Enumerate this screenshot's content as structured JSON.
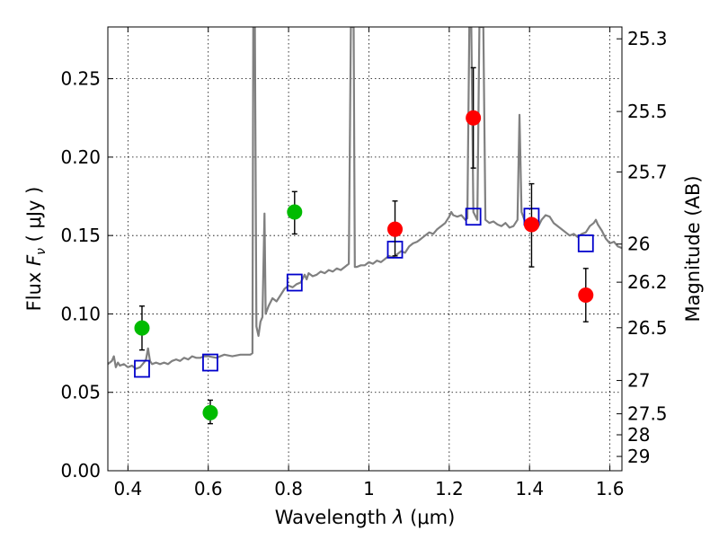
{
  "chart_data": {
    "type": "scatter",
    "xlabel_prefix": "Wavelength  ",
    "xlabel_symbol": "λ",
    "xlabel_unit": " (μm)",
    "ylabel_prefix": "Flux  ",
    "ylabel_symbol": "F",
    "ylabel_subscript": "ν",
    "ylabel_unit": "  ( μJy )",
    "y2label": "Magnitude (AB)",
    "xlim": [
      0.35,
      1.63
    ],
    "ylim": [
      0.0,
      0.283
    ],
    "grid": true,
    "x_ticks": [
      0.4,
      0.6,
      0.8,
      1.0,
      1.2,
      1.4,
      1.6
    ],
    "x_tick_labels": [
      "0.4",
      "0.6",
      "0.8",
      "1",
      "1.2",
      "1.4",
      "1.6"
    ],
    "y_ticks": [
      0.0,
      0.05,
      0.1,
      0.15,
      0.2,
      0.25
    ],
    "y_tick_labels": [
      "0.00",
      "0.05",
      "0.10",
      "0.15",
      "0.20",
      "0.25"
    ],
    "y2_ticks": [
      {
        "mag": 25.3,
        "label": "25.3"
      },
      {
        "mag": 25.5,
        "label": "25.5"
      },
      {
        "mag": 25.7,
        "label": "25.7"
      },
      {
        "mag": 26.0,
        "label": "26"
      },
      {
        "mag": 26.2,
        "label": "26.2"
      },
      {
        "mag": 26.5,
        "label": "26.5"
      },
      {
        "mag": 27.0,
        "label": "27"
      },
      {
        "mag": 27.5,
        "label": "27.5"
      },
      {
        "mag": 28.0,
        "label": "28"
      },
      {
        "mag": 29.0,
        "label": "29"
      }
    ],
    "series": [
      {
        "name": "model spectrum",
        "kind": "line",
        "color": "#808080",
        "points": [
          [
            0.35,
            0.068
          ],
          [
            0.36,
            0.07
          ],
          [
            0.365,
            0.073
          ],
          [
            0.37,
            0.066
          ],
          [
            0.375,
            0.069
          ],
          [
            0.38,
            0.067
          ],
          [
            0.39,
            0.068
          ],
          [
            0.4,
            0.066
          ],
          [
            0.41,
            0.067
          ],
          [
            0.42,
            0.065
          ],
          [
            0.43,
            0.066
          ],
          [
            0.44,
            0.069
          ],
          [
            0.445,
            0.071
          ],
          [
            0.45,
            0.078
          ],
          [
            0.455,
            0.07
          ],
          [
            0.46,
            0.068
          ],
          [
            0.47,
            0.069
          ],
          [
            0.48,
            0.068
          ],
          [
            0.49,
            0.069
          ],
          [
            0.5,
            0.068
          ],
          [
            0.51,
            0.07
          ],
          [
            0.52,
            0.071
          ],
          [
            0.53,
            0.07
          ],
          [
            0.54,
            0.072
          ],
          [
            0.55,
            0.071
          ],
          [
            0.56,
            0.073
          ],
          [
            0.57,
            0.072
          ],
          [
            0.58,
            0.072
          ],
          [
            0.59,
            0.073
          ],
          [
            0.6,
            0.073
          ],
          [
            0.62,
            0.072
          ],
          [
            0.64,
            0.074
          ],
          [
            0.66,
            0.073
          ],
          [
            0.68,
            0.074
          ],
          [
            0.7,
            0.074
          ],
          [
            0.705,
            0.074
          ],
          [
            0.71,
            0.075
          ],
          [
            0.712,
            0.283
          ],
          [
            0.716,
            0.283
          ],
          [
            0.72,
            0.092
          ],
          [
            0.725,
            0.086
          ],
          [
            0.73,
            0.095
          ],
          [
            0.735,
            0.098
          ],
          [
            0.74,
            0.164
          ],
          [
            0.743,
            0.1
          ],
          [
            0.75,
            0.105
          ],
          [
            0.76,
            0.11
          ],
          [
            0.77,
            0.108
          ],
          [
            0.78,
            0.112
          ],
          [
            0.79,
            0.116
          ],
          [
            0.8,
            0.118
          ],
          [
            0.81,
            0.117
          ],
          [
            0.82,
            0.119
          ],
          [
            0.83,
            0.12
          ],
          [
            0.84,
            0.125
          ],
          [
            0.845,
            0.122
          ],
          [
            0.85,
            0.126
          ],
          [
            0.86,
            0.124
          ],
          [
            0.87,
            0.125
          ],
          [
            0.88,
            0.127
          ],
          [
            0.89,
            0.126
          ],
          [
            0.9,
            0.128
          ],
          [
            0.91,
            0.127
          ],
          [
            0.92,
            0.129
          ],
          [
            0.93,
            0.128
          ],
          [
            0.94,
            0.13
          ],
          [
            0.95,
            0.132
          ],
          [
            0.955,
            0.283
          ],
          [
            0.962,
            0.283
          ],
          [
            0.965,
            0.13
          ],
          [
            0.97,
            0.13
          ],
          [
            0.98,
            0.131
          ],
          [
            0.99,
            0.131
          ],
          [
            1.0,
            0.133
          ],
          [
            1.01,
            0.132
          ],
          [
            1.02,
            0.134
          ],
          [
            1.03,
            0.133
          ],
          [
            1.04,
            0.135
          ],
          [
            1.05,
            0.137
          ],
          [
            1.06,
            0.136
          ],
          [
            1.07,
            0.138
          ],
          [
            1.08,
            0.14
          ],
          [
            1.09,
            0.139
          ],
          [
            1.1,
            0.143
          ],
          [
            1.11,
            0.145
          ],
          [
            1.12,
            0.146
          ],
          [
            1.13,
            0.148
          ],
          [
            1.14,
            0.15
          ],
          [
            1.15,
            0.152
          ],
          [
            1.16,
            0.151
          ],
          [
            1.17,
            0.154
          ],
          [
            1.18,
            0.156
          ],
          [
            1.19,
            0.158
          ],
          [
            1.2,
            0.162
          ],
          [
            1.205,
            0.165
          ],
          [
            1.21,
            0.163
          ],
          [
            1.22,
            0.162
          ],
          [
            1.23,
            0.163
          ],
          [
            1.24,
            0.16
          ],
          [
            1.245,
            0.161
          ],
          [
            1.25,
            0.283
          ],
          [
            1.255,
            0.283
          ],
          [
            1.26,
            0.165
          ],
          [
            1.27,
            0.16
          ],
          [
            1.275,
            0.283
          ],
          [
            1.285,
            0.283
          ],
          [
            1.29,
            0.16
          ],
          [
            1.3,
            0.158
          ],
          [
            1.31,
            0.159
          ],
          [
            1.32,
            0.157
          ],
          [
            1.33,
            0.156
          ],
          [
            1.34,
            0.158
          ],
          [
            1.35,
            0.155
          ],
          [
            1.36,
            0.156
          ],
          [
            1.37,
            0.16
          ],
          [
            1.375,
            0.227
          ],
          [
            1.38,
            0.165
          ],
          [
            1.39,
            0.158
          ],
          [
            1.4,
            0.155
          ],
          [
            1.41,
            0.153
          ],
          [
            1.42,
            0.155
          ],
          [
            1.43,
            0.16
          ],
          [
            1.44,
            0.163
          ],
          [
            1.45,
            0.162
          ],
          [
            1.46,
            0.158
          ],
          [
            1.47,
            0.156
          ],
          [
            1.48,
            0.154
          ],
          [
            1.49,
            0.152
          ],
          [
            1.5,
            0.15
          ],
          [
            1.51,
            0.151
          ],
          [
            1.52,
            0.149
          ],
          [
            1.53,
            0.151
          ],
          [
            1.54,
            0.152
          ],
          [
            1.55,
            0.156
          ],
          [
            1.56,
            0.158
          ],
          [
            1.565,
            0.16
          ],
          [
            1.57,
            0.157
          ],
          [
            1.58,
            0.153
          ],
          [
            1.59,
            0.148
          ],
          [
            1.6,
            0.145
          ],
          [
            1.61,
            0.146
          ],
          [
            1.62,
            0.143
          ],
          [
            1.63,
            0.142
          ]
        ]
      },
      {
        "name": "model photometry",
        "kind": "square",
        "color": "#0000cc",
        "points": [
          [
            0.435,
            0.065
          ],
          [
            0.605,
            0.069
          ],
          [
            0.815,
            0.12
          ],
          [
            1.065,
            0.141
          ],
          [
            1.26,
            0.162
          ],
          [
            1.405,
            0.162
          ],
          [
            1.54,
            0.145
          ]
        ]
      },
      {
        "name": "green observed",
        "kind": "circle",
        "color": "#00bb00",
        "points": [
          {
            "x": 0.435,
            "y": 0.091,
            "lo": 0.077,
            "hi": 0.105
          },
          {
            "x": 0.605,
            "y": 0.037,
            "lo": 0.03,
            "hi": 0.045
          },
          {
            "x": 0.815,
            "y": 0.165,
            "lo": 0.151,
            "hi": 0.178
          }
        ]
      },
      {
        "name": "red observed",
        "kind": "circle",
        "color": "#ff0000",
        "points": [
          {
            "x": 1.065,
            "y": 0.154,
            "lo": 0.137,
            "hi": 0.172
          },
          {
            "x": 1.26,
            "y": 0.225,
            "lo": 0.193,
            "hi": 0.257
          },
          {
            "x": 1.405,
            "y": 0.157,
            "lo": 0.13,
            "hi": 0.183
          },
          {
            "x": 1.54,
            "y": 0.112,
            "lo": 0.095,
            "hi": 0.129
          }
        ]
      }
    ]
  }
}
